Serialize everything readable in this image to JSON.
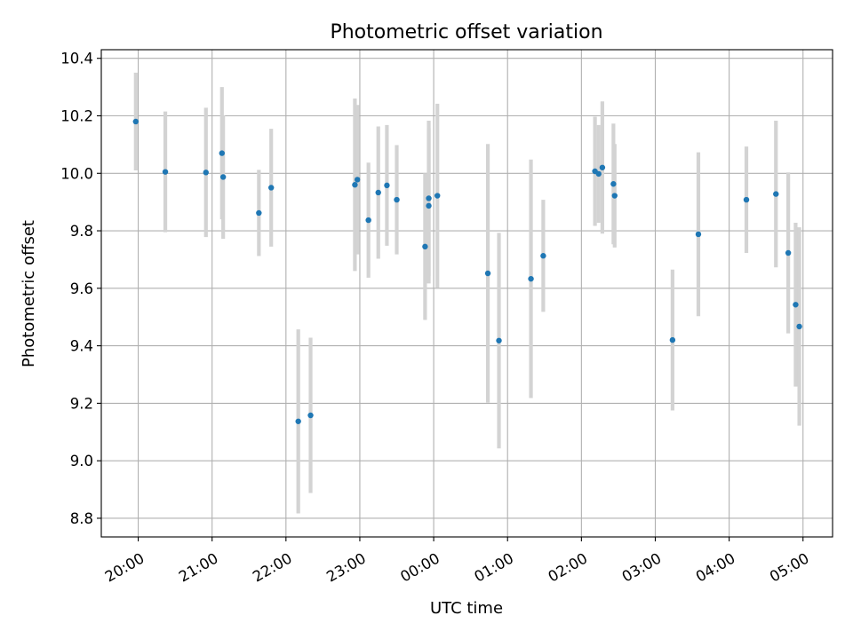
{
  "chart_data": {
    "type": "scatter",
    "title": "Photometric offset variation",
    "xlabel": "UTC time",
    "ylabel": "Photometric offset",
    "x_axis": "time",
    "xlim": [
      "19:30",
      "05:24"
    ],
    "ylim": [
      8.735,
      10.43
    ],
    "grid": true,
    "error_bar_color": "#d3d3d3",
    "marker_color": "#1f77b4",
    "x_ticks": [
      "20:00",
      "21:00",
      "22:00",
      "23:00",
      "00:00",
      "01:00",
      "02:00",
      "03:00",
      "04:00",
      "05:00"
    ],
    "y_ticks": [
      "8.8",
      "9.0",
      "9.2",
      "9.4",
      "9.6",
      "9.8",
      "10.0",
      "10.2",
      "10.4"
    ],
    "points": [
      {
        "x": "19:58",
        "y": 10.18,
        "err": 0.17
      },
      {
        "x": "20:22",
        "y": 10.005,
        "err": 0.21
      },
      {
        "x": "20:55",
        "y": 10.003,
        "err": 0.225
      },
      {
        "x": "21:08",
        "y": 10.07,
        "err": 0.23
      },
      {
        "x": "21:09",
        "y": 9.987,
        "err": 0.215
      },
      {
        "x": "21:38",
        "y": 9.862,
        "err": 0.15
      },
      {
        "x": "21:48",
        "y": 9.95,
        "err": 0.205
      },
      {
        "x": "22:10",
        "y": 9.137,
        "err": 0.32
      },
      {
        "x": "22:20",
        "y": 9.158,
        "err": 0.27
      },
      {
        "x": "22:56",
        "y": 9.96,
        "err": 0.3
      },
      {
        "x": "22:58",
        "y": 9.978,
        "err": 0.26
      },
      {
        "x": "23:07",
        "y": 9.837,
        "err": 0.2
      },
      {
        "x": "23:15",
        "y": 9.933,
        "err": 0.23
      },
      {
        "x": "23:22",
        "y": 9.958,
        "err": 0.21
      },
      {
        "x": "23:30",
        "y": 9.908,
        "err": 0.19
      },
      {
        "x": "23:53",
        "y": 9.745,
        "err": 0.255
      },
      {
        "x": "23:56",
        "y": 9.913,
        "err": 0.27
      },
      {
        "x": "23:56",
        "y": 9.887,
        "err": 0.27
      },
      {
        "x": "00:03",
        "y": 9.922,
        "err": 0.32
      },
      {
        "x": "00:44",
        "y": 9.652,
        "err": 0.45
      },
      {
        "x": "00:53",
        "y": 9.418,
        "err": 0.375
      },
      {
        "x": "01:19",
        "y": 9.633,
        "err": 0.415
      },
      {
        "x": "01:29",
        "y": 9.713,
        "err": 0.195
      },
      {
        "x": "02:11",
        "y": 10.007,
        "err": 0.19
      },
      {
        "x": "02:14",
        "y": 9.998,
        "err": 0.17
      },
      {
        "x": "02:17",
        "y": 10.02,
        "err": 0.23
      },
      {
        "x": "02:26",
        "y": 9.963,
        "err": 0.21
      },
      {
        "x": "02:27",
        "y": 9.922,
        "err": 0.18
      },
      {
        "x": "03:14",
        "y": 9.42,
        "err": 0.245
      },
      {
        "x": "03:35",
        "y": 9.788,
        "err": 0.285
      },
      {
        "x": "04:14",
        "y": 9.908,
        "err": 0.185
      },
      {
        "x": "04:38",
        "y": 9.928,
        "err": 0.255
      },
      {
        "x": "04:48",
        "y": 9.723,
        "err": 0.28
      },
      {
        "x": "04:54",
        "y": 9.543,
        "err": 0.285
      },
      {
        "x": "04:57",
        "y": 9.467,
        "err": 0.345
      }
    ]
  }
}
